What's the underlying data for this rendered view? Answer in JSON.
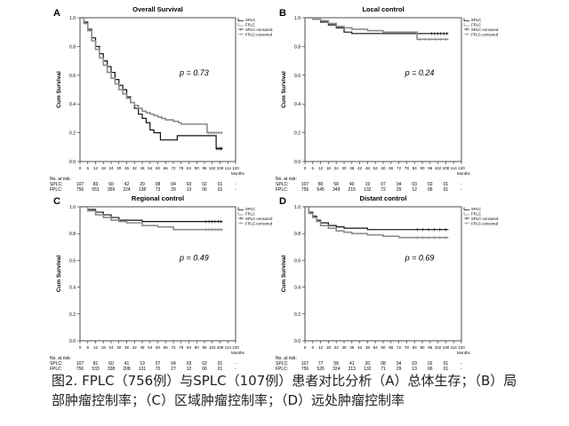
{
  "caption": {
    "line1": "图2. FPLC（756例）与SPLC（107例）患者对比分析（A）总体生存；（B）局",
    "line2": "部肿瘤控制率；（C）区域肿瘤控制率；（D）远处肿瘤控制率"
  },
  "colors": {
    "splc": "#111111",
    "fplc": "#8c8c8c",
    "axis": "#222222"
  },
  "chart_data": [
    {
      "type": "line",
      "panel": "A",
      "title": "Overall Survival",
      "ylabel": "Cum Survival",
      "xlabel": "Months",
      "xlim": [
        0,
        120
      ],
      "ylim": [
        0,
        1.0
      ],
      "xticks": [
        0,
        6,
        12,
        18,
        24,
        30,
        36,
        42,
        48,
        54,
        60,
        66,
        72,
        78,
        84,
        90,
        96,
        102,
        108,
        114,
        120
      ],
      "yticks": [
        0,
        0.2,
        0.4,
        0.6,
        0.8,
        1.0
      ],
      "annotation": "p = 0.73",
      "legend": [
        "SPLC",
        "FPLC",
        "SPLC-censored",
        "FPLC-censored"
      ],
      "risk": {
        "header": "No. at risk:",
        "splc_label": "SPLC:",
        "fplc_label": "FPLC:",
        "splc": [
          "107",
          "83",
          "60",
          "42",
          "20",
          "08",
          "04",
          "03",
          "02",
          "01",
          "-"
        ],
        "fplc": [
          "756",
          "551",
          "359",
          "224",
          "138",
          "73",
          "29",
          "13",
          "06",
          "01",
          "-"
        ]
      },
      "series": [
        {
          "name": "SPLC",
          "points": [
            [
              0,
              1.0
            ],
            [
              3,
              0.97
            ],
            [
              6,
              0.92
            ],
            [
              9,
              0.86
            ],
            [
              12,
              0.8
            ],
            [
              15,
              0.75
            ],
            [
              18,
              0.7
            ],
            [
              21,
              0.66
            ],
            [
              24,
              0.62
            ],
            [
              27,
              0.57
            ],
            [
              30,
              0.53
            ],
            [
              33,
              0.5
            ],
            [
              36,
              0.45
            ],
            [
              39,
              0.41
            ],
            [
              42,
              0.37
            ],
            [
              45,
              0.33
            ],
            [
              48,
              0.3
            ],
            [
              51,
              0.27
            ],
            [
              54,
              0.22
            ],
            [
              57,
              0.2
            ],
            [
              60,
              0.2
            ],
            [
              62,
              0.15
            ],
            [
              66,
              0.15
            ],
            [
              69,
              0.15
            ],
            [
              72,
              0.15
            ],
            [
              75,
              0.18
            ],
            [
              80,
              0.18
            ],
            [
              104,
              0.18
            ],
            [
              105,
              0.09
            ],
            [
              110,
              0.09
            ]
          ]
        },
        {
          "name": "FPLC",
          "points": [
            [
              0,
              1.0
            ],
            [
              3,
              0.96
            ],
            [
              6,
              0.91
            ],
            [
              9,
              0.84
            ],
            [
              12,
              0.78
            ],
            [
              15,
              0.72
            ],
            [
              18,
              0.67
            ],
            [
              21,
              0.62
            ],
            [
              24,
              0.58
            ],
            [
              27,
              0.54
            ],
            [
              30,
              0.5
            ],
            [
              33,
              0.47
            ],
            [
              36,
              0.44
            ],
            [
              39,
              0.41
            ],
            [
              42,
              0.39
            ],
            [
              45,
              0.37
            ],
            [
              48,
              0.35
            ],
            [
              51,
              0.34
            ],
            [
              54,
              0.33
            ],
            [
              57,
              0.32
            ],
            [
              60,
              0.31
            ],
            [
              63,
              0.3
            ],
            [
              66,
              0.29
            ],
            [
              72,
              0.28
            ],
            [
              76,
              0.27
            ],
            [
              78,
              0.26
            ],
            [
              96,
              0.26
            ],
            [
              98,
              0.2
            ],
            [
              110,
              0.2
            ]
          ]
        }
      ]
    },
    {
      "type": "line",
      "panel": "B",
      "title": "Local control",
      "ylabel": "Cum Survival",
      "xlabel": "Months",
      "xlim": [
        0,
        120
      ],
      "ylim": [
        0,
        1.0
      ],
      "xticks": [
        0,
        6,
        12,
        18,
        24,
        30,
        36,
        42,
        48,
        54,
        60,
        66,
        72,
        78,
        84,
        90,
        96,
        102,
        108,
        114,
        120
      ],
      "yticks": [
        0,
        0.2,
        0.4,
        0.6,
        0.8,
        1.0
      ],
      "annotation": "p = 0.24",
      "legend": [
        "SPLC",
        "FPLC",
        "SPLC-censored",
        "FPLC-censored"
      ],
      "risk": {
        "header": "No. at risk:",
        "splc_label": "SPLC:",
        "fplc_label": "FPLC:",
        "splc": [
          "107",
          "80",
          "58",
          "40",
          "19",
          "07",
          "04",
          "03",
          "02",
          "01",
          "-"
        ],
        "fplc": [
          "756",
          "545",
          "349",
          "215",
          "132",
          "72",
          "29",
          "12",
          "06",
          "01",
          "-"
        ]
      },
      "series": [
        {
          "name": "SPLC",
          "points": [
            [
              0,
              1.0
            ],
            [
              6,
              0.99
            ],
            [
              12,
              0.97
            ],
            [
              18,
              0.95
            ],
            [
              24,
              0.93
            ],
            [
              30,
              0.9
            ],
            [
              36,
              0.89
            ],
            [
              48,
              0.89
            ],
            [
              60,
              0.89
            ],
            [
              84,
              0.89
            ],
            [
              96,
              0.89
            ],
            [
              110,
              0.89
            ]
          ]
        },
        {
          "name": "FPLC",
          "points": [
            [
              0,
              1.0
            ],
            [
              6,
              0.99
            ],
            [
              12,
              0.98
            ],
            [
              18,
              0.96
            ],
            [
              24,
              0.94
            ],
            [
              30,
              0.93
            ],
            [
              36,
              0.92
            ],
            [
              48,
              0.91
            ],
            [
              60,
              0.9
            ],
            [
              72,
              0.9
            ],
            [
              84,
              0.9
            ],
            [
              86,
              0.85
            ],
            [
              110,
              0.85
            ]
          ]
        }
      ]
    },
    {
      "type": "line",
      "panel": "C",
      "title": "Regional control",
      "ylabel": "Cum Survival",
      "xlabel": "Months",
      "xlim": [
        0,
        120
      ],
      "ylim": [
        0,
        1.0
      ],
      "xticks": [
        0,
        6,
        12,
        18,
        24,
        30,
        36,
        42,
        48,
        54,
        60,
        66,
        72,
        78,
        84,
        90,
        96,
        102,
        108,
        114,
        120
      ],
      "yticks": [
        0,
        0.2,
        0.4,
        0.6,
        0.8,
        1.0
      ],
      "annotation": "p = 0.49",
      "legend": [
        "SPLC",
        "FPLC",
        "SPLC-censored",
        "FPLC-censored"
      ],
      "risk": {
        "header": "No. at risk:",
        "splc_label": "SPLC:",
        "fplc_label": "FPLC:",
        "splc": [
          "107",
          "81",
          "60",
          "41",
          "19",
          "07",
          "04",
          "03",
          "02",
          "01",
          "-"
        ],
        "fplc": [
          "756",
          "533",
          "338",
          "208",
          "131",
          "70",
          "27",
          "12",
          "06",
          "01",
          "-"
        ]
      },
      "series": [
        {
          "name": "SPLC",
          "points": [
            [
              0,
              1.0
            ],
            [
              6,
              0.98
            ],
            [
              12,
              0.96
            ],
            [
              18,
              0.94
            ],
            [
              24,
              0.92
            ],
            [
              30,
              0.9
            ],
            [
              36,
              0.9
            ],
            [
              48,
              0.89
            ],
            [
              60,
              0.89
            ],
            [
              84,
              0.89
            ],
            [
              96,
              0.89
            ],
            [
              110,
              0.89
            ]
          ]
        },
        {
          "name": "FPLC",
          "points": [
            [
              0,
              1.0
            ],
            [
              6,
              0.97
            ],
            [
              12,
              0.94
            ],
            [
              18,
              0.92
            ],
            [
              24,
              0.9
            ],
            [
              30,
              0.89
            ],
            [
              36,
              0.88
            ],
            [
              48,
              0.86
            ],
            [
              60,
              0.85
            ],
            [
              72,
              0.83
            ],
            [
              84,
              0.83
            ],
            [
              96,
              0.83
            ],
            [
              110,
              0.83
            ]
          ]
        }
      ]
    },
    {
      "type": "line",
      "panel": "D",
      "title": "Distant control",
      "ylabel": "Cum Survival",
      "xlabel": "Months",
      "xlim": [
        0,
        120
      ],
      "ylim": [
        0,
        1.0
      ],
      "xticks": [
        0,
        6,
        12,
        18,
        24,
        30,
        36,
        42,
        48,
        54,
        60,
        66,
        72,
        78,
        84,
        90,
        96,
        102,
        108,
        114,
        120
      ],
      "yticks": [
        0,
        0.2,
        0.4,
        0.6,
        0.8,
        1.0
      ],
      "annotation": "p = 0.69",
      "legend": [
        "SPLC",
        "FPLC",
        "SPLC-censored",
        "FPLC-censored"
      ],
      "risk": {
        "header": "No. at risk:",
        "splc_label": "SPLC:",
        "fplc_label": "FPLC:",
        "splc": [
          "107",
          "77",
          "58",
          "41",
          "20",
          "08",
          "04",
          "03",
          "02",
          "01",
          "-"
        ],
        "fplc": [
          "756",
          "526",
          "324",
          "213",
          "132",
          "71",
          "29",
          "13",
          "06",
          "01",
          "-"
        ]
      },
      "series": [
        {
          "name": "SPLC",
          "points": [
            [
              0,
              1.0
            ],
            [
              3,
              0.96
            ],
            [
              6,
              0.93
            ],
            [
              9,
              0.9
            ],
            [
              12,
              0.88
            ],
            [
              18,
              0.86
            ],
            [
              24,
              0.85
            ],
            [
              30,
              0.84
            ],
            [
              36,
              0.84
            ],
            [
              48,
              0.83
            ],
            [
              60,
              0.83
            ],
            [
              84,
              0.83
            ],
            [
              110,
              0.83
            ]
          ]
        },
        {
          "name": "FPLC",
          "points": [
            [
              0,
              1.0
            ],
            [
              3,
              0.95
            ],
            [
              6,
              0.92
            ],
            [
              9,
              0.89
            ],
            [
              12,
              0.86
            ],
            [
              18,
              0.84
            ],
            [
              24,
              0.82
            ],
            [
              30,
              0.81
            ],
            [
              36,
              0.8
            ],
            [
              48,
              0.79
            ],
            [
              60,
              0.78
            ],
            [
              72,
              0.77
            ],
            [
              84,
              0.77
            ],
            [
              110,
              0.77
            ]
          ]
        }
      ]
    }
  ]
}
